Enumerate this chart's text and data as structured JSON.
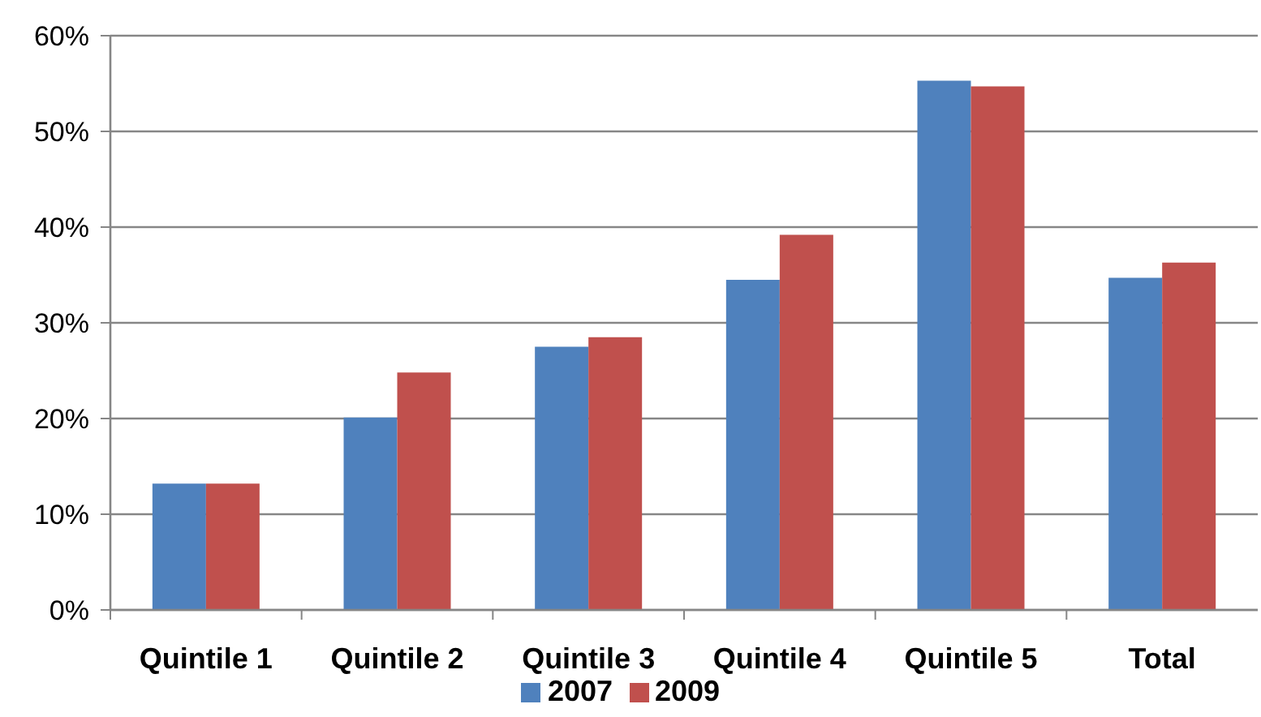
{
  "chart_data": {
    "type": "bar",
    "categories": [
      "Quintile 1",
      "Quintile 2",
      "Quintile 3",
      "Quintile 4",
      "Quintile 5",
      "Total"
    ],
    "series": [
      {
        "name": "2007",
        "color": "#4f81bd",
        "values": [
          13.2,
          20.1,
          27.5,
          34.5,
          55.3,
          34.7
        ]
      },
      {
        "name": "2009",
        "color": "#c0504d",
        "values": [
          13.2,
          24.8,
          28.5,
          39.2,
          54.7,
          36.3
        ]
      }
    ],
    "ylim": [
      0,
      60
    ],
    "yticks": [
      {
        "value": 0,
        "label": "0%"
      },
      {
        "value": 10,
        "label": "10%"
      },
      {
        "value": 20,
        "label": "20%"
      },
      {
        "value": 30,
        "label": "30%"
      },
      {
        "value": 40,
        "label": "40%"
      },
      {
        "value": 50,
        "label": "50%"
      },
      {
        "value": 60,
        "label": "60%"
      }
    ],
    "grid": "y",
    "legend": "bottom"
  }
}
